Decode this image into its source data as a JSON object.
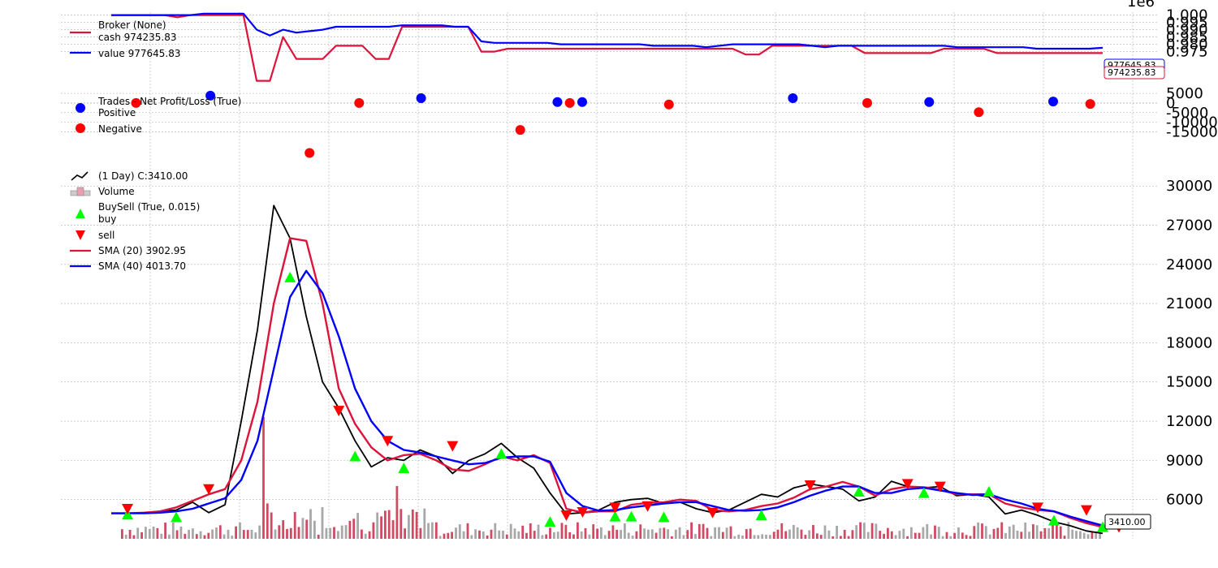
{
  "figure": {
    "offset_label": "1e6"
  },
  "chart_data": [
    {
      "id": "broker",
      "type": "line",
      "legend": {
        "title": "Broker (None)",
        "placement": "top-left"
      },
      "series": [
        {
          "name": "cash 974235.83",
          "color": "#dc143c",
          "values": [
            1.0,
            1.0,
            1.0,
            1.0,
            1.0,
            0.9985,
            1.0,
            1.0,
            1.0,
            1.0,
            1.0,
            0.955,
            0.955,
            0.985,
            0.97,
            0.97,
            0.97,
            0.979,
            0.979,
            0.979,
            0.97,
            0.97,
            0.992,
            0.992,
            0.992,
            0.992,
            0.992,
            0.992,
            0.975,
            0.975,
            0.977,
            0.977,
            0.977,
            0.977,
            0.977,
            0.977,
            0.977,
            0.977,
            0.977,
            0.977,
            0.977,
            0.977,
            0.977,
            0.977,
            0.977,
            0.977,
            0.977,
            0.977,
            0.973,
            0.973,
            0.979,
            0.979,
            0.979,
            0.979,
            0.979,
            0.979,
            0.979,
            0.974,
            0.974,
            0.974,
            0.974,
            0.974,
            0.974,
            0.977,
            0.977,
            0.977,
            0.977,
            0.974,
            0.974,
            0.974,
            0.974,
            0.974,
            0.974,
            0.974,
            0.974,
            0.974
          ],
          "last_label": "974235.83"
        },
        {
          "name": "value 977645.83",
          "color": "#0000ff",
          "values": [
            1.0,
            1.0,
            1.0,
            1.0,
            1.0,
            1.0,
            1.0,
            1.001,
            1.001,
            1.001,
            1.001,
            0.99,
            0.986,
            0.99,
            0.988,
            0.989,
            0.99,
            0.992,
            0.992,
            0.992,
            0.992,
            0.992,
            0.993,
            0.993,
            0.993,
            0.993,
            0.992,
            0.992,
            0.982,
            0.981,
            0.981,
            0.981,
            0.981,
            0.981,
            0.98,
            0.98,
            0.98,
            0.98,
            0.98,
            0.98,
            0.98,
            0.979,
            0.979,
            0.979,
            0.979,
            0.978,
            0.979,
            0.98,
            0.98,
            0.98,
            0.98,
            0.98,
            0.98,
            0.979,
            0.978,
            0.979,
            0.979,
            0.979,
            0.979,
            0.979,
            0.979,
            0.979,
            0.979,
            0.979,
            0.978,
            0.978,
            0.978,
            0.978,
            0.978,
            0.978,
            0.977,
            0.977,
            0.977,
            0.977,
            0.977,
            0.9776
          ],
          "last_label": "977645.83"
        }
      ],
      "y_ticks": [
        "1.000",
        "0.995",
        "0.990",
        "0.985",
        "0.980",
        "0.975"
      ],
      "ylim": [
        0.952,
        1.002
      ]
    },
    {
      "id": "trades",
      "type": "scatter",
      "legend": {
        "title": "Trades - Net Profit/Loss (True)",
        "placement": "top-left"
      },
      "series": [
        {
          "name": "Positive",
          "color": "#0000ff",
          "points": [
            [
              8,
              3800
            ],
            [
              25,
              2500
            ],
            [
              36,
              500
            ],
            [
              38,
              500
            ],
            [
              55,
              2500
            ],
            [
              66,
              500
            ],
            [
              76,
              800
            ]
          ]
        },
        {
          "name": "Negative",
          "color": "#ff0000",
          "points": [
            [
              2,
              0
            ],
            [
              16,
              -26000
            ],
            [
              20,
              0
            ],
            [
              33,
              -14000
            ],
            [
              37,
              0
            ],
            [
              45,
              -800
            ],
            [
              61,
              0
            ],
            [
              70,
              -4800
            ],
            [
              79,
              -500
            ]
          ]
        }
      ],
      "y_ticks": [
        "5000",
        "0",
        "-5000",
        "-10000",
        "-15000"
      ],
      "ylim": [
        -30000,
        8000
      ]
    },
    {
      "id": "price",
      "type": "line",
      "legend": {
        "placement": "top-left"
      },
      "price_label": " (1 Day) C:3410.00",
      "volume_label": "Volume",
      "buysell_label": "BuySell (True, 0.015)",
      "buy_label": "buy",
      "sell_label": "sell",
      "last_price_label": "3410.00",
      "series": [
        {
          "name": "SMA (20) 3902.95",
          "color": "#dc143c",
          "values": [
            4950,
            4950,
            5000,
            5100,
            5400,
            5900,
            6400,
            6800,
            9000,
            13500,
            21000,
            26000,
            25800,
            21000,
            14500,
            11800,
            10000,
            9000,
            9400,
            9500,
            9000,
            8300,
            8200,
            8700,
            9300,
            9000,
            9400,
            8800,
            5300,
            5000,
            5100,
            5100,
            5600,
            5750,
            5800,
            6000,
            5900,
            5200,
            5100,
            5200,
            5500,
            5700,
            6150,
            6800,
            7000,
            7350,
            7000,
            6300,
            6800,
            7000,
            6950,
            6750,
            6400,
            6400,
            6400,
            5700,
            5400,
            5200,
            5100,
            4600,
            4200,
            3902.95
          ]
        },
        {
          "name": "SMA (40) 4013.70",
          "color": "#0000ff",
          "values": [
            4950,
            4950,
            4950,
            5000,
            5100,
            5300,
            5700,
            6100,
            7500,
            10500,
            16000,
            21500,
            23500,
            21800,
            18500,
            14500,
            12000,
            10500,
            9800,
            9600,
            9300,
            9000,
            8700,
            8800,
            9200,
            9300,
            9300,
            8900,
            6500,
            5500,
            5150,
            5200,
            5400,
            5550,
            5700,
            5800,
            5800,
            5500,
            5200,
            5150,
            5200,
            5400,
            5800,
            6300,
            6700,
            7000,
            7000,
            6500,
            6500,
            6800,
            6900,
            6700,
            6500,
            6350,
            6400,
            6000,
            5700,
            5300,
            5100,
            4700,
            4350,
            4013.7
          ]
        },
        {
          "name": " (1 Day) C:3410.00",
          "color": "#000000",
          "values": [
            4950,
            4950,
            4950,
            5100,
            5200,
            5800,
            5000,
            5600,
            12000,
            19000,
            28500,
            26000,
            20000,
            15000,
            13000,
            10500,
            8500,
            9200,
            9000,
            9800,
            9300,
            8000,
            9000,
            9500,
            10300,
            9200,
            8400,
            6500,
            4900,
            5000,
            5200,
            5800,
            6000,
            6100,
            5700,
            5800,
            5300,
            5000,
            5200,
            5800,
            6400,
            6200,
            6900,
            7200,
            7000,
            6800,
            5900,
            6200,
            7400,
            7000,
            6900,
            7000,
            6300,
            6400,
            6200,
            4900,
            5200,
            4800,
            4300,
            4000,
            3600,
            3410
          ]
        }
      ],
      "buy": [
        [
          1,
          4850
        ],
        [
          4,
          4650
        ],
        [
          11,
          23000
        ],
        [
          15,
          9300
        ],
        [
          18,
          8400
        ],
        [
          24,
          9500
        ],
        [
          27,
          4300
        ],
        [
          31,
          4700
        ],
        [
          32,
          4700
        ],
        [
          34,
          4650
        ],
        [
          40,
          4800
        ],
        [
          46,
          6600
        ],
        [
          50,
          6500
        ],
        [
          54,
          6600
        ],
        [
          58,
          4400
        ],
        [
          61,
          3900
        ]
      ],
      "sell": [
        [
          1,
          5300
        ],
        [
          6,
          6800
        ],
        [
          14,
          12800
        ],
        [
          17,
          10500
        ],
        [
          21,
          10100
        ],
        [
          28,
          4800
        ],
        [
          29,
          5050
        ],
        [
          31,
          5400
        ],
        [
          33,
          5500
        ],
        [
          37,
          5000
        ],
        [
          43,
          7100
        ],
        [
          49,
          7200
        ],
        [
          51,
          7000
        ],
        [
          57,
          5400
        ],
        [
          60,
          5200
        ],
        [
          62,
          3900
        ]
      ],
      "y_ticks": [
        "30000",
        "27000",
        "24000",
        "21000",
        "18000",
        "15000",
        "12000",
        "9000",
        "6000"
      ],
      "ylim": [
        3000,
        31500
      ]
    }
  ]
}
